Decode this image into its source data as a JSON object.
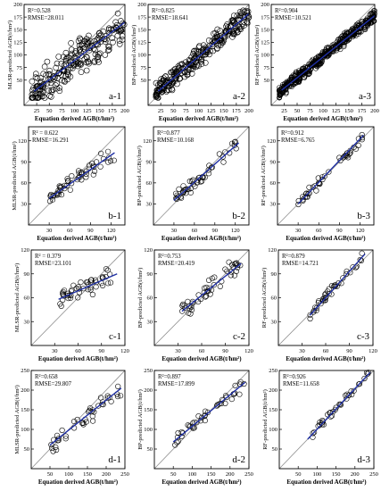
{
  "figure": {
    "background": "#ffffff",
    "point_color": "#000000",
    "fit_color": "#1f2fa3",
    "diag_color": "#8f8f8f"
  },
  "chart_data": [
    {
      "id": "a-1",
      "type": "scatter",
      "panel_label": "a-1",
      "xlabel": "Equation derived AGB(t/hm²)",
      "ylabel": "MLSR-predicted AGB(t/hm²)",
      "stats": [
        "R²=0.528",
        "RMSE=28.011"
      ],
      "xlim": [
        0,
        200
      ],
      "ylim": [
        0,
        200
      ],
      "xticks": [
        25,
        50,
        75,
        100,
        125,
        150,
        175,
        200
      ],
      "yticks": [
        50,
        75,
        100,
        125,
        150,
        175,
        200
      ],
      "fit": [
        [
          20,
          28
        ],
        [
          200,
          165
        ]
      ],
      "n": 230,
      "seed": 11,
      "point_size": 3.0,
      "marks": {
        "xr": [
          15,
          200
        ],
        "yr": [
          15,
          195
        ],
        "slope": 0.76,
        "int": 13,
        "sd": 27
      }
    },
    {
      "id": "a-2",
      "type": "scatter",
      "panel_label": "a-2",
      "xlabel": "Equation derived AGB(t/hm²)",
      "ylabel": "BP-predicted AGB(t/hm²)",
      "stats": [
        "R²=0.825",
        "RMSE=18.641"
      ],
      "xlim": [
        0,
        200
      ],
      "ylim": [
        0,
        200
      ],
      "xticks": [
        25,
        50,
        75,
        100,
        125,
        150,
        175,
        200
      ],
      "yticks": [
        50,
        75,
        100,
        125,
        150,
        175,
        200
      ],
      "fit": [
        [
          20,
          28
        ],
        [
          200,
          182
        ]
      ],
      "n": 280,
      "seed": 23,
      "point_size": 3.0,
      "marks": {
        "xr": [
          15,
          200
        ],
        "yr": [
          15,
          195
        ],
        "slope": 0.86,
        "int": 10,
        "sd": 15
      }
    },
    {
      "id": "a-3",
      "type": "scatter",
      "panel_label": "a-3",
      "xlabel": "Equation derived AGB(t/hm²)",
      "ylabel": "RF-predicted AGB(t/hm²)",
      "stats": [
        "R²=0.904",
        "RMSE=10.521"
      ],
      "xlim": [
        0,
        200
      ],
      "ylim": [
        0,
        200
      ],
      "xticks": [
        25,
        50,
        75,
        100,
        125,
        150,
        175,
        200
      ],
      "yticks": [
        50,
        75,
        100,
        125,
        150,
        175,
        200
      ],
      "fit": [
        [
          20,
          30
        ],
        [
          200,
          178
        ]
      ],
      "n": 480,
      "seed": 37,
      "point_size": 2.6,
      "marks": {
        "xr": [
          15,
          200
        ],
        "yr": [
          15,
          195
        ],
        "slope": 0.83,
        "int": 13,
        "sd": 9
      }
    },
    {
      "id": "b-1",
      "type": "scatter",
      "panel_label": "b-1",
      "xlabel": "Equation derived AGB(t/hm²)",
      "ylabel": "MLSR-predicted AGB(t/hm²)",
      "stats": [
        "R² = 0.622",
        "RMSE=16.291"
      ],
      "xlim": [
        0,
        140
      ],
      "ylim": [
        0,
        140
      ],
      "xticks": [
        30,
        60,
        90,
        120
      ],
      "yticks": [
        30,
        60,
        90,
        120
      ],
      "fit": [
        [
          30,
          38
        ],
        [
          125,
          103
        ]
      ],
      "n": 55,
      "seed": 41,
      "point_size": 2.8,
      "marks": {
        "xr": [
          30,
          125
        ],
        "yr": [
          30,
          130
        ],
        "slope": 0.68,
        "int": 18,
        "sd": 9
      }
    },
    {
      "id": "b-2",
      "type": "scatter",
      "panel_label": "b-2",
      "xlabel": "Equation derived AGB(t/hm²)",
      "ylabel": "BP-predicted AGB(t/hm²)",
      "stats": [
        "R²=0.877",
        "RMSE=10.168"
      ],
      "xlim": [
        0,
        140
      ],
      "ylim": [
        0,
        140
      ],
      "xticks": [
        30,
        60,
        90,
        120
      ],
      "yticks": [
        30,
        60,
        90,
        120
      ],
      "fit": [
        [
          30,
          35
        ],
        [
          125,
          117
        ]
      ],
      "n": 50,
      "seed": 53,
      "point_size": 2.8,
      "marks": {
        "xr": [
          30,
          125
        ],
        "yr": [
          30,
          135
        ],
        "slope": 0.86,
        "int": 9,
        "sd": 7
      }
    },
    {
      "id": "b-3",
      "type": "scatter",
      "panel_label": "b-3",
      "xlabel": "Equation derived AGB(t/hm²)",
      "ylabel": "RF-predicted AGB(t/hm²)",
      "stats": [
        "R²=0.912",
        "RMSE=6.765"
      ],
      "xlim": [
        0,
        140
      ],
      "ylim": [
        0,
        140
      ],
      "xticks": [
        30,
        60,
        90,
        120
      ],
      "yticks": [
        30,
        60,
        90,
        120
      ],
      "fit": [
        [
          30,
          30
        ],
        [
          125,
          128
        ]
      ],
      "n": 45,
      "seed": 67,
      "point_size": 2.8,
      "marks": {
        "xr": [
          30,
          125
        ],
        "yr": [
          28,
          135
        ],
        "slope": 1.02,
        "int": -1,
        "sd": 5
      }
    },
    {
      "id": "c-1",
      "type": "scatter",
      "panel_label": "c-1",
      "xlabel": "Equation derived AGB(t/hm²)",
      "ylabel": "MLSR-predicted AGB(t/hm²)",
      "stats": [
        "R² = 0.379",
        "RMSE=23.101"
      ],
      "xlim": [
        0,
        120
      ],
      "ylim": [
        0,
        120
      ],
      "xticks": [
        30,
        60,
        90,
        120
      ],
      "yticks": [
        30,
        60,
        90,
        120
      ],
      "fit": [
        [
          35,
          58
        ],
        [
          110,
          90
        ]
      ],
      "n": 48,
      "seed": 71,
      "point_size": 2.8,
      "marks": {
        "xr": [
          35,
          110
        ],
        "yr": [
          40,
          115
        ],
        "slope": 0.43,
        "int": 43,
        "sd": 9
      }
    },
    {
      "id": "c-2",
      "type": "scatter",
      "panel_label": "c-2",
      "xlabel": "Equation derived AGB(t/hm²)",
      "ylabel": "BP-predicted AGB(t/hm²)",
      "stats": [
        "R²=0.753",
        "RMSE=20.419"
      ],
      "xlim": [
        0,
        120
      ],
      "ylim": [
        0,
        120
      ],
      "xticks": [
        30,
        60,
        90,
        120
      ],
      "yticks": [
        30,
        60,
        90,
        120
      ],
      "fit": [
        [
          35,
          43
        ],
        [
          110,
          103
        ]
      ],
      "n": 48,
      "seed": 83,
      "point_size": 2.8,
      "marks": {
        "xr": [
          35,
          110
        ],
        "yr": [
          30,
          118
        ],
        "slope": 0.8,
        "int": 15,
        "sd": 10
      }
    },
    {
      "id": "c-3",
      "type": "scatter",
      "panel_label": "c-3",
      "xlabel": "Equation derived AGB(t/hm²)",
      "ylabel": "RF-predicted AGB(t/hm²)",
      "stats": [
        "R²=0.879",
        "RMSE=14.721"
      ],
      "xlim": [
        0,
        120
      ],
      "ylim": [
        0,
        120
      ],
      "xticks": [
        30,
        60,
        90,
        120
      ],
      "yticks": [
        30,
        60,
        90,
        120
      ],
      "fit": [
        [
          40,
          38
        ],
        [
          110,
          115
        ]
      ],
      "n": 42,
      "seed": 97,
      "point_size": 2.8,
      "marks": {
        "xr": [
          40,
          110
        ],
        "yr": [
          30,
          118
        ],
        "slope": 1.1,
        "int": -6,
        "sd": 5
      }
    },
    {
      "id": "d-1",
      "type": "scatter",
      "panel_label": "d-1",
      "xlabel": "Equation derived AGB(t/hm²)",
      "ylabel": "MLSR-predicted AGB(t/hm²)",
      "stats": [
        "R²=0.658",
        "RMSE=29.807"
      ],
      "xlim": [
        0,
        250
      ],
      "ylim": [
        0,
        250
      ],
      "xticks": [
        50,
        100,
        150,
        200,
        250
      ],
      "yticks": [
        50,
        100,
        150,
        200,
        250
      ],
      "fit": [
        [
          50,
          60
        ],
        [
          240,
          205
        ]
      ],
      "n": 42,
      "seed": 101,
      "point_size": 2.8,
      "marks": {
        "xr": [
          50,
          240
        ],
        "yr": [
          40,
          245
        ],
        "slope": 0.76,
        "int": 22,
        "sd": 20
      }
    },
    {
      "id": "d-2",
      "type": "scatter",
      "panel_label": "d-2",
      "xlabel": "Equation derived AGB(t/hm²)",
      "ylabel": "BP-predicted AGB(t/hm²)",
      "stats": [
        "R²=0.897",
        "RMSE=17.899"
      ],
      "xlim": [
        0,
        250
      ],
      "ylim": [
        0,
        250
      ],
      "xticks": [
        50,
        100,
        150,
        200,
        250
      ],
      "yticks": [
        50,
        100,
        150,
        200,
        250
      ],
      "fit": [
        [
          50,
          68
        ],
        [
          240,
          220
        ]
      ],
      "n": 42,
      "seed": 113,
      "point_size": 2.8,
      "marks": {
        "xr": [
          50,
          240
        ],
        "yr": [
          40,
          245
        ],
        "slope": 0.8,
        "int": 28,
        "sd": 12
      }
    },
    {
      "id": "d-3",
      "type": "scatter",
      "panel_label": "d-3",
      "xlabel": "Equation derived AGB(t/hm²)",
      "ylabel": "RF-predicted AGB(t/hm²)",
      "stats": [
        "R²=0.926",
        "RMSE=11.658"
      ],
      "xlim": [
        0,
        250
      ],
      "ylim": [
        0,
        250
      ],
      "xticks": [
        50,
        100,
        150,
        200,
        250
      ],
      "yticks": [
        50,
        100,
        150,
        200,
        250
      ],
      "fit": [
        [
          75,
          75
        ],
        [
          240,
          245
        ]
      ],
      "n": 36,
      "seed": 127,
      "point_size": 2.8,
      "marks": {
        "xr": [
          75,
          240
        ],
        "yr": [
          40,
          248
        ],
        "slope": 1.03,
        "int": -2,
        "sd": 7
      }
    }
  ]
}
